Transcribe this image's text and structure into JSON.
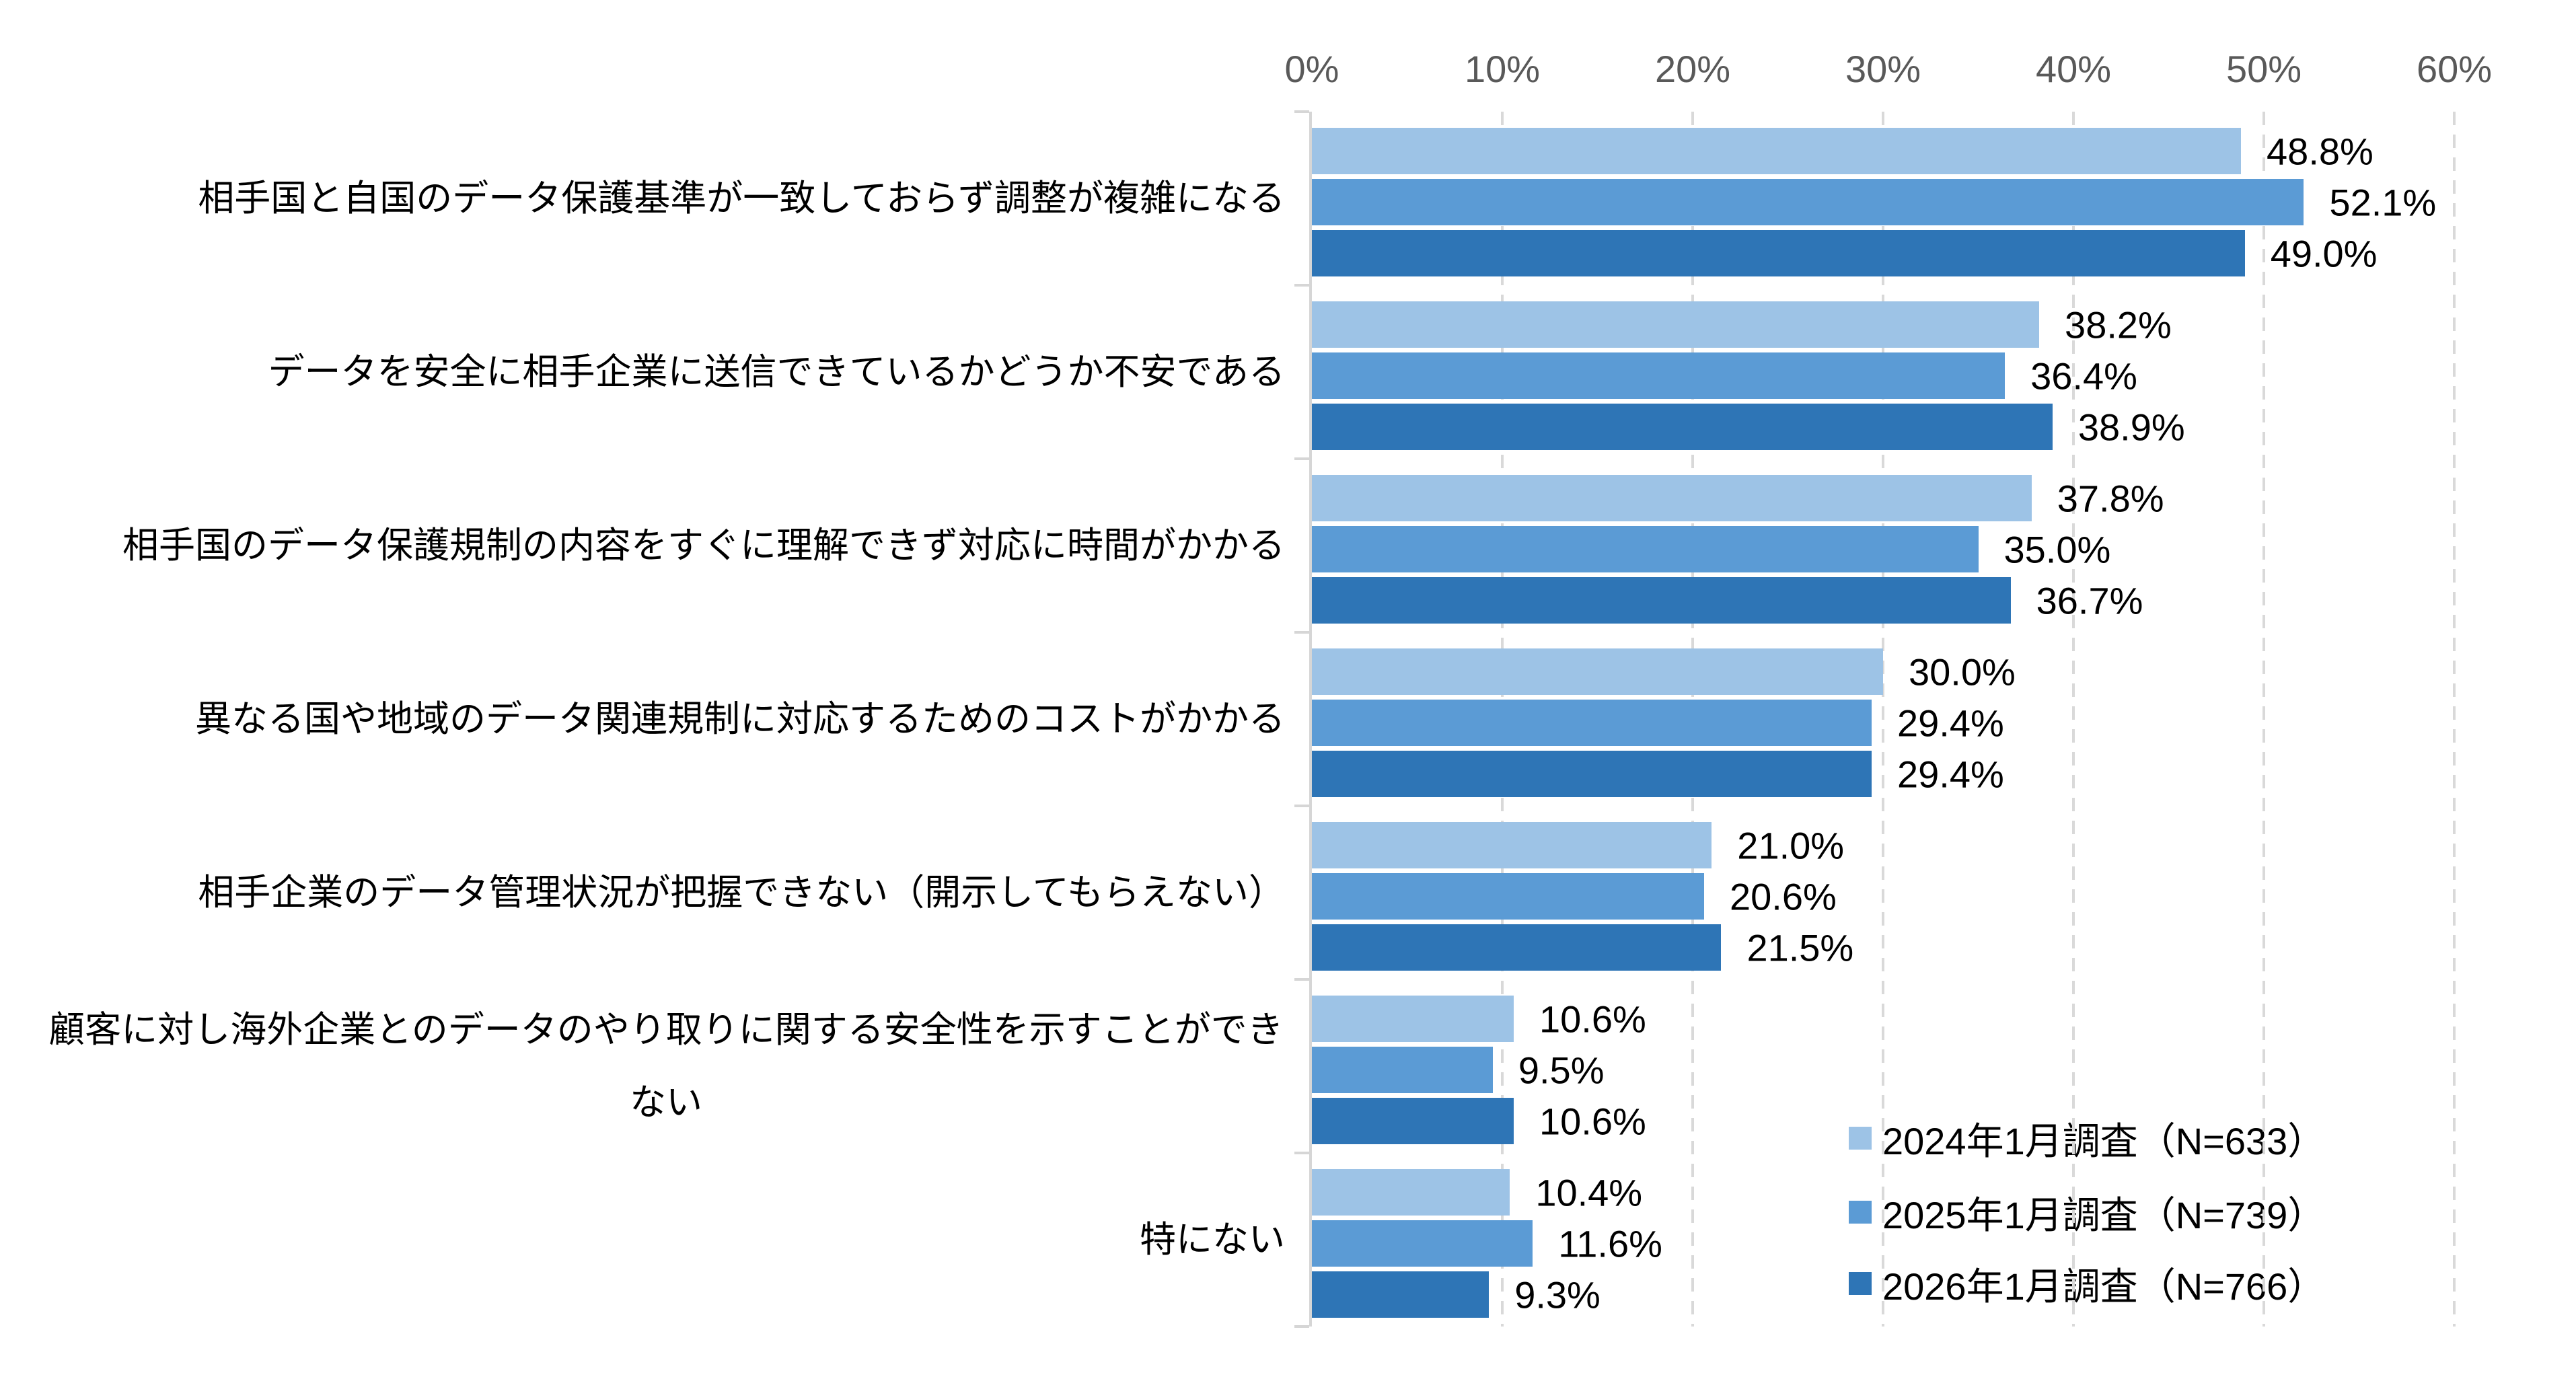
{
  "chart_data": {
    "type": "bar",
    "orientation": "horizontal",
    "title": "",
    "xlabel": "",
    "ylabel": "",
    "grid": "vertical-dashed",
    "legend_position": "inside-bottom-right",
    "x_axis": {
      "position": "top",
      "min": 0,
      "max": 60,
      "step": 10,
      "tick_labels": [
        "0%",
        "10%",
        "20%",
        "30%",
        "40%",
        "50%",
        "60%"
      ]
    },
    "categories": [
      "相手国と自国のデータ保護基準が一致しておらず調整が複雑になる",
      "データを安全に相手企業に送信できているかどうか不安である",
      "相手国のデータ保護規制の内容をすぐに理解できず対応に時間がかかる",
      "異なる国や地域のデータ関連規制に対応するためのコストがかかる",
      "相手企業のデータ管理状況が把握できない（開示してもらえない）",
      "顧客に対し海外企業とのデータのやり取りに関する安全性を示すことができない",
      "特にない"
    ],
    "series": [
      {
        "name": "2024年1月調査（N=633）",
        "color": "#9DC3E6",
        "values": [
          48.8,
          38.2,
          37.8,
          30.0,
          21.0,
          10.6,
          10.4
        ]
      },
      {
        "name": "2025年1月調査（N=739）",
        "color": "#5B9BD5",
        "values": [
          52.1,
          36.4,
          35.0,
          29.4,
          20.6,
          9.5,
          11.6
        ]
      },
      {
        "name": "2026年1月調査（N=766）",
        "color": "#2E75B6",
        "values": [
          49.0,
          38.9,
          36.7,
          29.4,
          21.5,
          10.6,
          9.3
        ]
      }
    ],
    "value_label_format": "one-decimal-percent"
  },
  "colors": {
    "background": "#FFFFFF",
    "gridline": "#D9D9D9",
    "axis_line": "#D6D6D6",
    "tick_label_text": "#595959",
    "label_text": "#000000"
  }
}
